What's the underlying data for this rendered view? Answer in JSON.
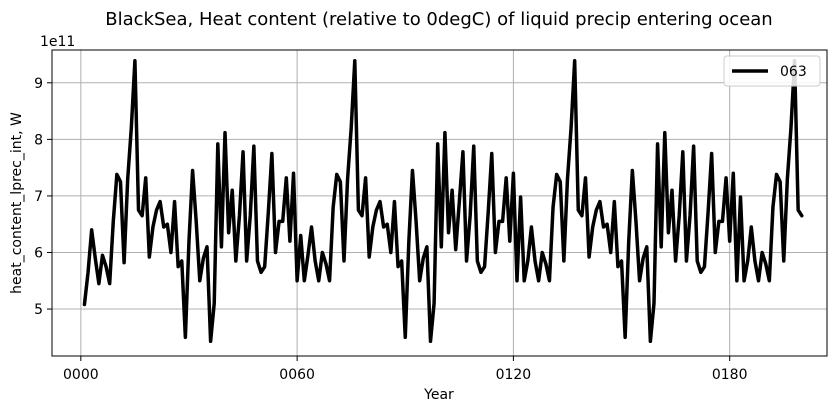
{
  "chart_data": {
    "type": "line",
    "title": "BlackSea, Heat content (relative to 0degC) of liquid precip entering ocean",
    "xlabel": "Year",
    "ylabel": "heat_content_lprec_int, W",
    "y_offset_label": "1e11",
    "x_tick_labels": [
      "0000",
      "0060",
      "0120",
      "0180"
    ],
    "x_ticks": [
      0,
      60,
      120,
      180
    ],
    "y_tick_labels": [
      "5",
      "6",
      "7",
      "8",
      "9"
    ],
    "y_ticks": [
      5,
      6,
      7,
      8,
      9
    ],
    "xlim": [
      -8,
      207
    ],
    "ylim": [
      4.17,
      9.58
    ],
    "grid": true,
    "legend_position": "top-right",
    "series": [
      {
        "name": "063",
        "color": "#000000",
        "x": [
          1,
          2,
          3,
          4,
          5,
          6,
          7,
          8,
          9,
          10,
          11,
          12,
          13,
          14,
          15,
          16,
          17,
          18,
          19,
          20,
          21,
          22,
          23,
          24,
          25,
          26,
          27,
          28,
          29,
          30,
          31,
          32,
          33,
          34,
          35,
          36,
          37,
          38,
          39,
          40,
          41,
          42,
          43,
          44,
          45,
          46,
          47,
          48,
          49,
          50,
          51,
          52,
          53,
          54,
          55,
          56,
          57,
          58,
          59,
          60,
          61,
          62,
          63,
          64,
          65,
          66,
          67,
          68,
          69,
          70,
          71,
          72,
          73,
          74,
          75,
          76,
          77,
          78,
          79,
          80,
          81,
          82,
          83,
          84,
          85,
          86,
          87,
          88,
          89,
          90,
          91,
          92,
          93,
          94,
          95,
          96,
          97,
          98,
          99,
          100,
          101,
          102,
          103,
          104,
          105,
          106,
          107,
          108,
          109,
          110,
          111,
          112,
          113,
          114,
          115,
          116,
          117,
          118,
          119,
          120,
          121,
          122,
          123,
          124,
          125,
          126,
          127,
          128,
          129,
          130,
          131,
          132,
          133,
          134,
          135,
          136,
          137,
          138,
          139,
          140,
          141,
          142,
          143,
          144,
          145,
          146,
          147,
          148,
          149,
          150,
          151,
          152,
          153,
          154,
          155,
          156,
          157,
          158,
          159,
          160,
          161,
          162,
          163,
          164,
          165,
          166,
          167,
          168,
          169,
          170,
          171,
          172,
          173,
          174,
          175,
          176,
          177,
          178,
          179,
          180,
          181,
          182,
          183,
          184,
          185,
          186,
          187,
          188,
          189,
          190,
          191,
          192,
          193,
          194,
          195,
          196,
          197,
          198,
          199,
          200
        ],
        "values": [
          5.08,
          5.65,
          6.4,
          5.9,
          5.45,
          5.95,
          5.75,
          5.45,
          6.55,
          7.38,
          7.25,
          5.82,
          7.3,
          8.2,
          9.39,
          6.75,
          6.65,
          7.32,
          5.92,
          6.45,
          6.75,
          6.9,
          6.45,
          6.5,
          6.0,
          6.9,
          5.75,
          5.85,
          4.5,
          6.2,
          7.45,
          6.55,
          5.5,
          5.9,
          6.1,
          4.43,
          5.1,
          7.92,
          6.1,
          8.12,
          6.35,
          7.1,
          5.85,
          6.65,
          7.78,
          5.85,
          6.65,
          7.88,
          5.85,
          5.65,
          5.75,
          6.7,
          7.75,
          6.0,
          6.55,
          6.55,
          7.32,
          6.2,
          7.4,
          5.5,
          6.3,
          5.5,
          5.95,
          6.45,
          5.85,
          5.5,
          6.0,
          5.8,
          5.5,
          6.8,
          7.38,
          7.25,
          5.85,
          7.3,
          8.2,
          9.39,
          6.75,
          6.65,
          7.32,
          5.92,
          6.45,
          6.75,
          6.9,
          6.45,
          6.5,
          6.0,
          6.9,
          5.75,
          5.85,
          4.5,
          6.2,
          7.45,
          6.55,
          5.5,
          5.9,
          6.1,
          4.43,
          5.1,
          7.92,
          6.1,
          8.12,
          6.35,
          7.1,
          6.05,
          6.9,
          7.78,
          5.85,
          6.65,
          7.88,
          5.85,
          5.65,
          5.75,
          6.7,
          7.75,
          6.0,
          6.55,
          6.55,
          7.32,
          6.2,
          7.4,
          5.5,
          6.98,
          5.5,
          5.85,
          6.45,
          5.85,
          5.5,
          6.0,
          5.8,
          5.5,
          6.8,
          7.38,
          7.25,
          5.85,
          7.3,
          8.2,
          9.39,
          6.75,
          6.65,
          7.32,
          5.92,
          6.45,
          6.75,
          6.9,
          6.45,
          6.5,
          6.0,
          6.9,
          5.75,
          5.85,
          4.5,
          6.2,
          7.45,
          6.55,
          5.5,
          5.9,
          6.1,
          4.43,
          5.1,
          7.92,
          6.1,
          8.12,
          6.35,
          7.1,
          5.85,
          6.65,
          7.78,
          5.85,
          6.65,
          7.88,
          5.85,
          5.65,
          5.75,
          6.7,
          7.75,
          6.0,
          6.55,
          6.55,
          7.32,
          6.2,
          7.4,
          5.5,
          6.98,
          5.5,
          5.85,
          6.45,
          5.85,
          5.5,
          6.0,
          5.8,
          5.5,
          6.8,
          7.38,
          7.25,
          5.85,
          7.3,
          8.2,
          9.39,
          6.75,
          6.65
        ]
      }
    ]
  }
}
